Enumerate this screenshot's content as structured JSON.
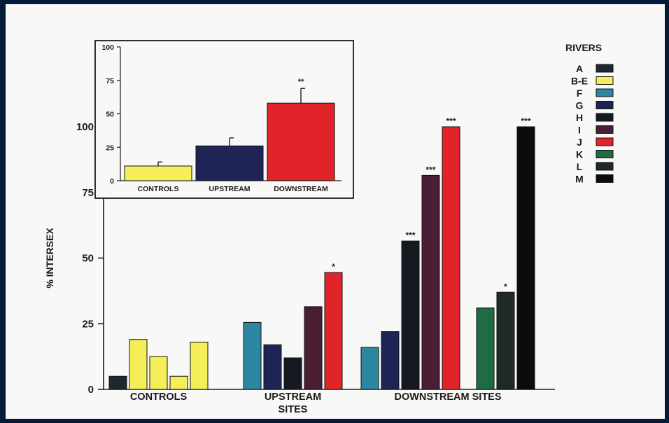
{
  "chart_data": [
    {
      "type": "bar",
      "role": "main",
      "ylabel": "% INTERSEX",
      "ylim": [
        0,
        100
      ],
      "yticks": [
        "0",
        "25",
        "50",
        "75",
        "100"
      ],
      "groups": [
        {
          "label": "CONTROLS",
          "bars": [
            {
              "river": "A",
              "value": 5,
              "sig": ""
            },
            {
              "river": "B-E",
              "value": 19,
              "sig": ""
            },
            {
              "river": "B-E",
              "value": 12.5,
              "sig": ""
            },
            {
              "river": "B-E",
              "value": 5,
              "sig": ""
            },
            {
              "river": "B-E",
              "value": 18,
              "sig": ""
            }
          ]
        },
        {
          "label": "UPSTREAM\nSITES",
          "bars": [
            {
              "river": "F",
              "value": 25.5,
              "sig": ""
            },
            {
              "river": "G",
              "value": 17,
              "sig": ""
            },
            {
              "river": "H",
              "value": 12,
              "sig": ""
            },
            {
              "river": "I",
              "value": 31.5,
              "sig": ""
            },
            {
              "river": "J",
              "value": 44.5,
              "sig": "*"
            }
          ]
        },
        {
          "label": "DOWNSTREAM SITES",
          "bars": [
            {
              "river": "F",
              "value": 16,
              "sig": ""
            },
            {
              "river": "G",
              "value": 22,
              "sig": ""
            },
            {
              "river": "H",
              "value": 56.5,
              "sig": "***"
            },
            {
              "river": "I",
              "value": 81.5,
              "sig": "***"
            },
            {
              "river": "J",
              "value": 100,
              "sig": "***"
            },
            {
              "river": "K",
              "value": 31,
              "sig": ""
            },
            {
              "river": "L",
              "value": 37,
              "sig": "*"
            },
            {
              "river": "M",
              "value": 100,
              "sig": "***"
            }
          ]
        }
      ],
      "legend": {
        "title": "RIVERS",
        "items": [
          {
            "label": "A",
            "color": "#1c2a30"
          },
          {
            "label": "B-E",
            "color": "#f4ee5a"
          },
          {
            "label": "F",
            "color": "#2e87a0"
          },
          {
            "label": "G",
            "color": "#1f2456"
          },
          {
            "label": "H",
            "color": "#151a22"
          },
          {
            "label": "I",
            "color": "#4a1f33"
          },
          {
            "label": "J",
            "color": "#e1242a"
          },
          {
            "label": "K",
            "color": "#1f6b44"
          },
          {
            "label": "L",
            "color": "#1d2a26"
          },
          {
            "label": "M",
            "color": "#0c0c0c"
          }
        ]
      }
    },
    {
      "type": "bar",
      "role": "inset",
      "ylim": [
        0,
        100
      ],
      "yticks": [
        "0",
        "25",
        "50",
        "75",
        "100"
      ],
      "bars": [
        {
          "label": "CONTROLS",
          "value": 11,
          "error": 3,
          "sig": "",
          "color": "#f4ee5a"
        },
        {
          "label": "UPSTREAM",
          "value": 26,
          "error": 6,
          "sig": "",
          "color": "#1f2456"
        },
        {
          "label": "DOWNSTREAM",
          "value": 58,
          "error": 11,
          "sig": "**",
          "color": "#e1242a"
        }
      ]
    }
  ]
}
